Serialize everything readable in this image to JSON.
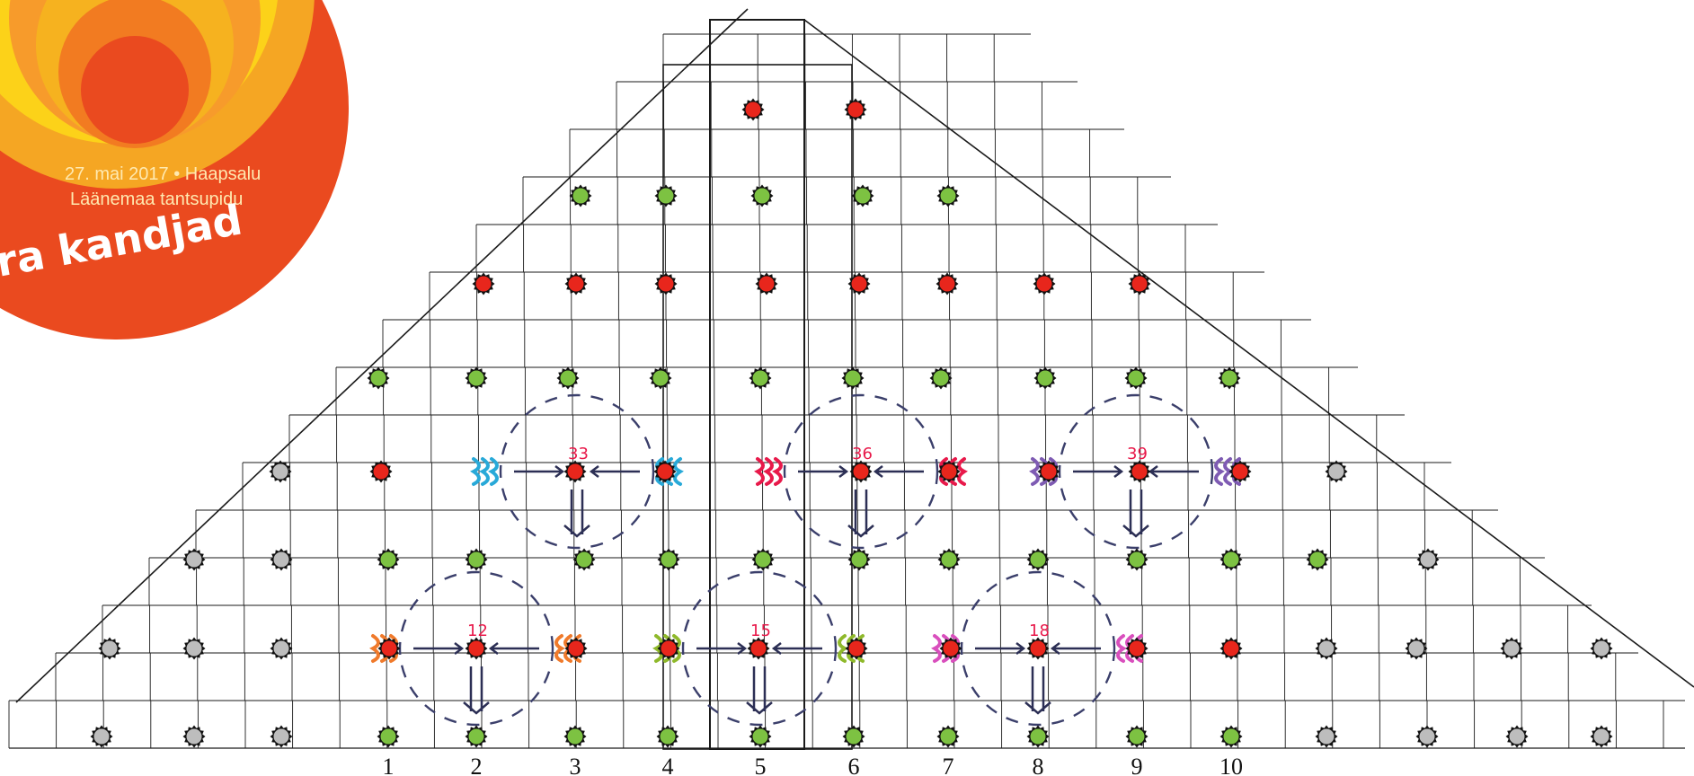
{
  "logo": {
    "line1": "27. mai 2017 • Haapsalu",
    "line2": "Läänemaa tantsupidu",
    "line3": "ra kandjad"
  },
  "colors": {
    "red": "#e8261c",
    "green": "#7dc242",
    "gray": "#bdbdbd",
    "grid": "#1a1a1a",
    "logo_outer": "#ea4a1f",
    "logo_yellow": "#fcd219"
  },
  "column_labels": [
    "1",
    "2",
    "3",
    "4",
    "5",
    "6",
    "7",
    "8",
    "9",
    "10"
  ],
  "groups": [
    {
      "label": "33",
      "color": "#28a9d8"
    },
    {
      "label": "36",
      "color": "#e8194a"
    },
    {
      "label": "39",
      "color": "#7e5bb3"
    },
    {
      "label": "12",
      "color": "#f07a2b"
    },
    {
      "label": "15",
      "color": "#8fb92b"
    },
    {
      "label": "18",
      "color": "#d94fbd"
    }
  ]
}
